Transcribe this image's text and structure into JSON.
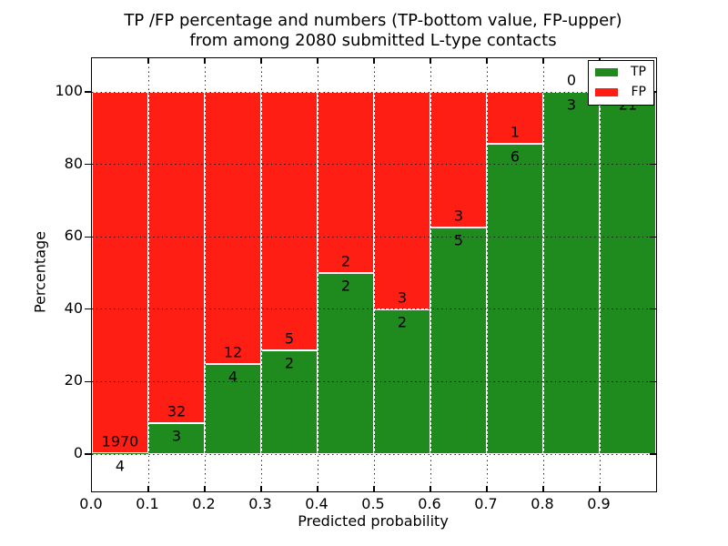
{
  "title": {
    "line1": "TP /FP percentage and numbers (TP-bottom value, FP-upper)",
    "line2": "from among 2080 submitted L-type contacts"
  },
  "axes": {
    "xlabel": "Predicted probability",
    "ylabel": "Percentage",
    "xtick_labels": [
      "0.0",
      "0.1",
      "0.2",
      "0.3",
      "0.4",
      "0.5",
      "0.6",
      "0.7",
      "0.8",
      "0.9"
    ],
    "ytick_labels": [
      "0",
      "20",
      "40",
      "60",
      "80",
      "100"
    ],
    "ytick_values": [
      0,
      20,
      40,
      60,
      80,
      100
    ]
  },
  "legend": {
    "items": [
      {
        "label": "TP",
        "color": "#1f8b1f"
      },
      {
        "label": "FP",
        "color": "#ff1e14"
      }
    ]
  },
  "colors": {
    "tp": "#1f8b1f",
    "fp": "#ff1e14",
    "grid": "#000000",
    "frame": "#000000",
    "bar_edge": "#ffffff",
    "background": "#ffffff"
  },
  "chart_data": {
    "type": "bar",
    "stacked": true,
    "orientation": "vertical",
    "title": "TP /FP percentage and numbers (TP-bottom value, FP-upper) from among 2080 submitted L-type contacts",
    "xlabel": "Predicted probability",
    "ylabel": "Percentage",
    "xlim": [
      0.0,
      1.0
    ],
    "ylim": [
      -10,
      110
    ],
    "grid": "dotted, drawn above bars",
    "legend_position": "upper right",
    "total_submitted": 2080,
    "bin_edges": [
      0.0,
      0.1,
      0.2,
      0.3,
      0.4,
      0.5,
      0.6,
      0.7,
      0.8,
      0.9,
      1.0
    ],
    "series": [
      {
        "name": "TP",
        "counts": [
          4,
          3,
          4,
          2,
          2,
          2,
          5,
          6,
          3,
          21
        ],
        "pct": [
          0.2,
          8.57,
          25.0,
          28.57,
          50.0,
          40.0,
          62.5,
          85.71,
          100.0,
          100.0
        ]
      },
      {
        "name": "FP",
        "counts": [
          1970,
          32,
          12,
          5,
          2,
          3,
          3,
          1,
          0,
          0
        ],
        "pct": [
          99.8,
          91.43,
          75.0,
          71.43,
          50.0,
          60.0,
          37.5,
          14.29,
          0.0,
          0.0
        ]
      }
    ],
    "label_rule": "TP count printed just below the green segment top, FP count printed just above it"
  }
}
